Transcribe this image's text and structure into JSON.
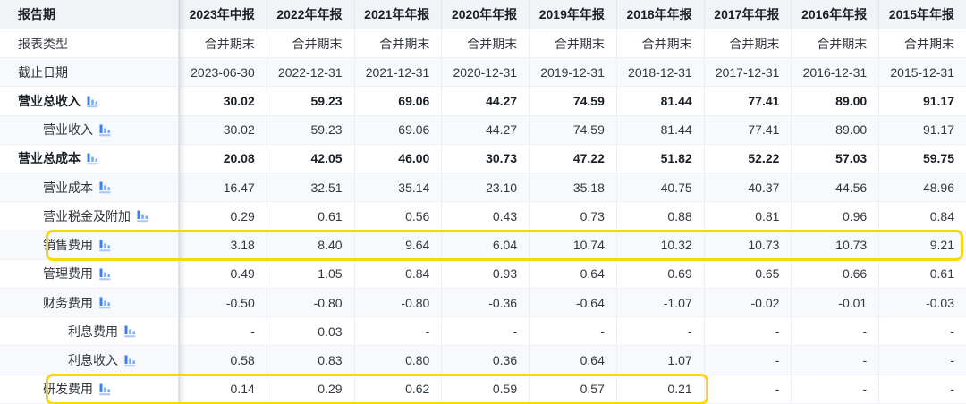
{
  "colors": {
    "header_bg": "#f1f3f6",
    "row_alt_bg": "#f7f9fc",
    "row_bg": "#ffffff",
    "highlight_yellow": "#ffd60a",
    "icon_blue": "#3d7ef7",
    "text_strong": "#1b1f26",
    "text": "#33373d"
  },
  "table": {
    "corner_label": "报告期",
    "columns": [
      "2023年中报",
      "2022年年报",
      "2021年年报",
      "2020年年报",
      "2019年年报",
      "2018年年报",
      "2017年年报",
      "2016年年报",
      "2015年年报"
    ],
    "rows": [
      {
        "label": "报表类型",
        "indent": 0,
        "bold": false,
        "icon": false,
        "values": [
          "合并期末",
          "合并期末",
          "合并期末",
          "合并期末",
          "合并期末",
          "合并期末",
          "合并期末",
          "合并期末",
          "合并期末"
        ]
      },
      {
        "label": "截止日期",
        "indent": 0,
        "bold": false,
        "icon": false,
        "values": [
          "2023-06-30",
          "2022-12-31",
          "2021-12-31",
          "2020-12-31",
          "2019-12-31",
          "2018-12-31",
          "2017-12-31",
          "2016-12-31",
          "2015-12-31"
        ]
      },
      {
        "label": "营业总收入",
        "indent": 0,
        "bold": true,
        "icon": true,
        "values": [
          "30.02",
          "59.23",
          "69.06",
          "44.27",
          "74.59",
          "81.44",
          "77.41",
          "89.00",
          "91.17"
        ]
      },
      {
        "label": "营业收入",
        "indent": 1,
        "bold": false,
        "icon": true,
        "values": [
          "30.02",
          "59.23",
          "69.06",
          "44.27",
          "74.59",
          "81.44",
          "77.41",
          "89.00",
          "91.17"
        ]
      },
      {
        "label": "营业总成本",
        "indent": 0,
        "bold": true,
        "icon": true,
        "values": [
          "20.08",
          "42.05",
          "46.00",
          "30.73",
          "47.22",
          "51.82",
          "52.22",
          "57.03",
          "59.75"
        ]
      },
      {
        "label": "营业成本",
        "indent": 1,
        "bold": false,
        "icon": true,
        "values": [
          "16.47",
          "32.51",
          "35.14",
          "23.10",
          "35.18",
          "40.75",
          "40.37",
          "44.56",
          "48.96"
        ]
      },
      {
        "label": "营业税金及附加",
        "indent": 1,
        "bold": false,
        "icon": true,
        "values": [
          "0.29",
          "0.61",
          "0.56",
          "0.43",
          "0.73",
          "0.88",
          "0.81",
          "0.96",
          "0.84"
        ]
      },
      {
        "label": "销售费用",
        "indent": 1,
        "bold": false,
        "icon": true,
        "highlight": true,
        "highlight_span": 9,
        "values": [
          "3.18",
          "8.40",
          "9.64",
          "6.04",
          "10.74",
          "10.32",
          "10.73",
          "10.73",
          "9.21"
        ]
      },
      {
        "label": "管理费用",
        "indent": 1,
        "bold": false,
        "icon": true,
        "values": [
          "0.49",
          "1.05",
          "0.84",
          "0.93",
          "0.64",
          "0.69",
          "0.65",
          "0.66",
          "0.61"
        ]
      },
      {
        "label": "财务费用",
        "indent": 1,
        "bold": false,
        "icon": true,
        "values": [
          "-0.50",
          "-0.80",
          "-0.80",
          "-0.36",
          "-0.64",
          "-1.07",
          "-0.02",
          "-0.01",
          "-0.03"
        ]
      },
      {
        "label": "利息费用",
        "indent": 2,
        "bold": false,
        "icon": true,
        "values": [
          "-",
          "0.03",
          "-",
          "-",
          "-",
          "-",
          "-",
          "-",
          "-"
        ]
      },
      {
        "label": "利息收入",
        "indent": 2,
        "bold": false,
        "icon": true,
        "values": [
          "0.58",
          "0.83",
          "0.80",
          "0.36",
          "0.64",
          "1.07",
          "-",
          "-",
          "-"
        ]
      },
      {
        "label": "研发费用",
        "indent": 1,
        "bold": false,
        "icon": true,
        "highlight": true,
        "highlight_span": 6,
        "values": [
          "0.14",
          "0.29",
          "0.62",
          "0.59",
          "0.57",
          "0.21",
          "-",
          "-",
          "-"
        ]
      }
    ]
  }
}
